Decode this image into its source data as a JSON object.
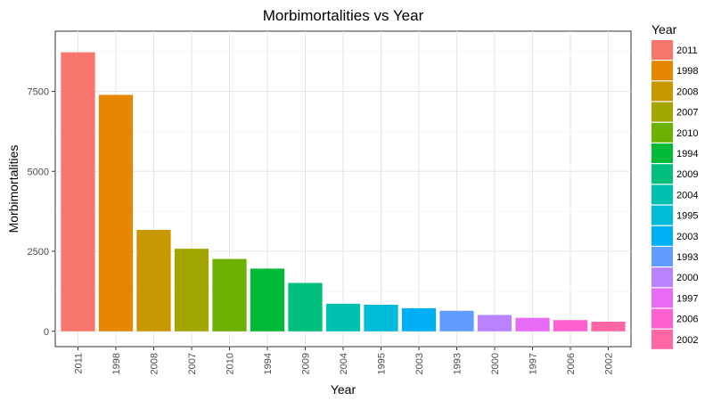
{
  "chart_data": {
    "type": "bar",
    "title": "Morbimortalities vs Year",
    "xlabel": "Year",
    "ylabel": "Morbimortalities",
    "categories": [
      "2011",
      "1998",
      "2008",
      "2007",
      "2010",
      "1994",
      "2009",
      "2004",
      "1995",
      "2003",
      "1993",
      "2000",
      "1997",
      "2006",
      "2002"
    ],
    "values": [
      8720,
      7390,
      3170,
      2580,
      2260,
      1960,
      1510,
      860,
      830,
      720,
      640,
      510,
      420,
      350,
      300
    ],
    "colors": [
      "#F8766D",
      "#E58700",
      "#C99800",
      "#A3A500",
      "#6BB100",
      "#00BA38",
      "#00BF7D",
      "#00C0AF",
      "#00BCD8",
      "#00B0F6",
      "#619CFF",
      "#B983FF",
      "#E76BF3",
      "#FD61D1",
      "#FF67A4"
    ],
    "ylim": [
      0,
      9000
    ],
    "yticks": [
      0,
      2500,
      5000,
      7500
    ],
    "ytick_labels": [
      "0",
      "2500",
      "5000",
      "7500"
    ],
    "grid": true,
    "legend": {
      "title": "Year",
      "position": "right",
      "items": [
        "2011",
        "1998",
        "2008",
        "2007",
        "2010",
        "1994",
        "2009",
        "2004",
        "1995",
        "2003",
        "1993",
        "2000",
        "1997",
        "2006",
        "2002"
      ]
    }
  }
}
